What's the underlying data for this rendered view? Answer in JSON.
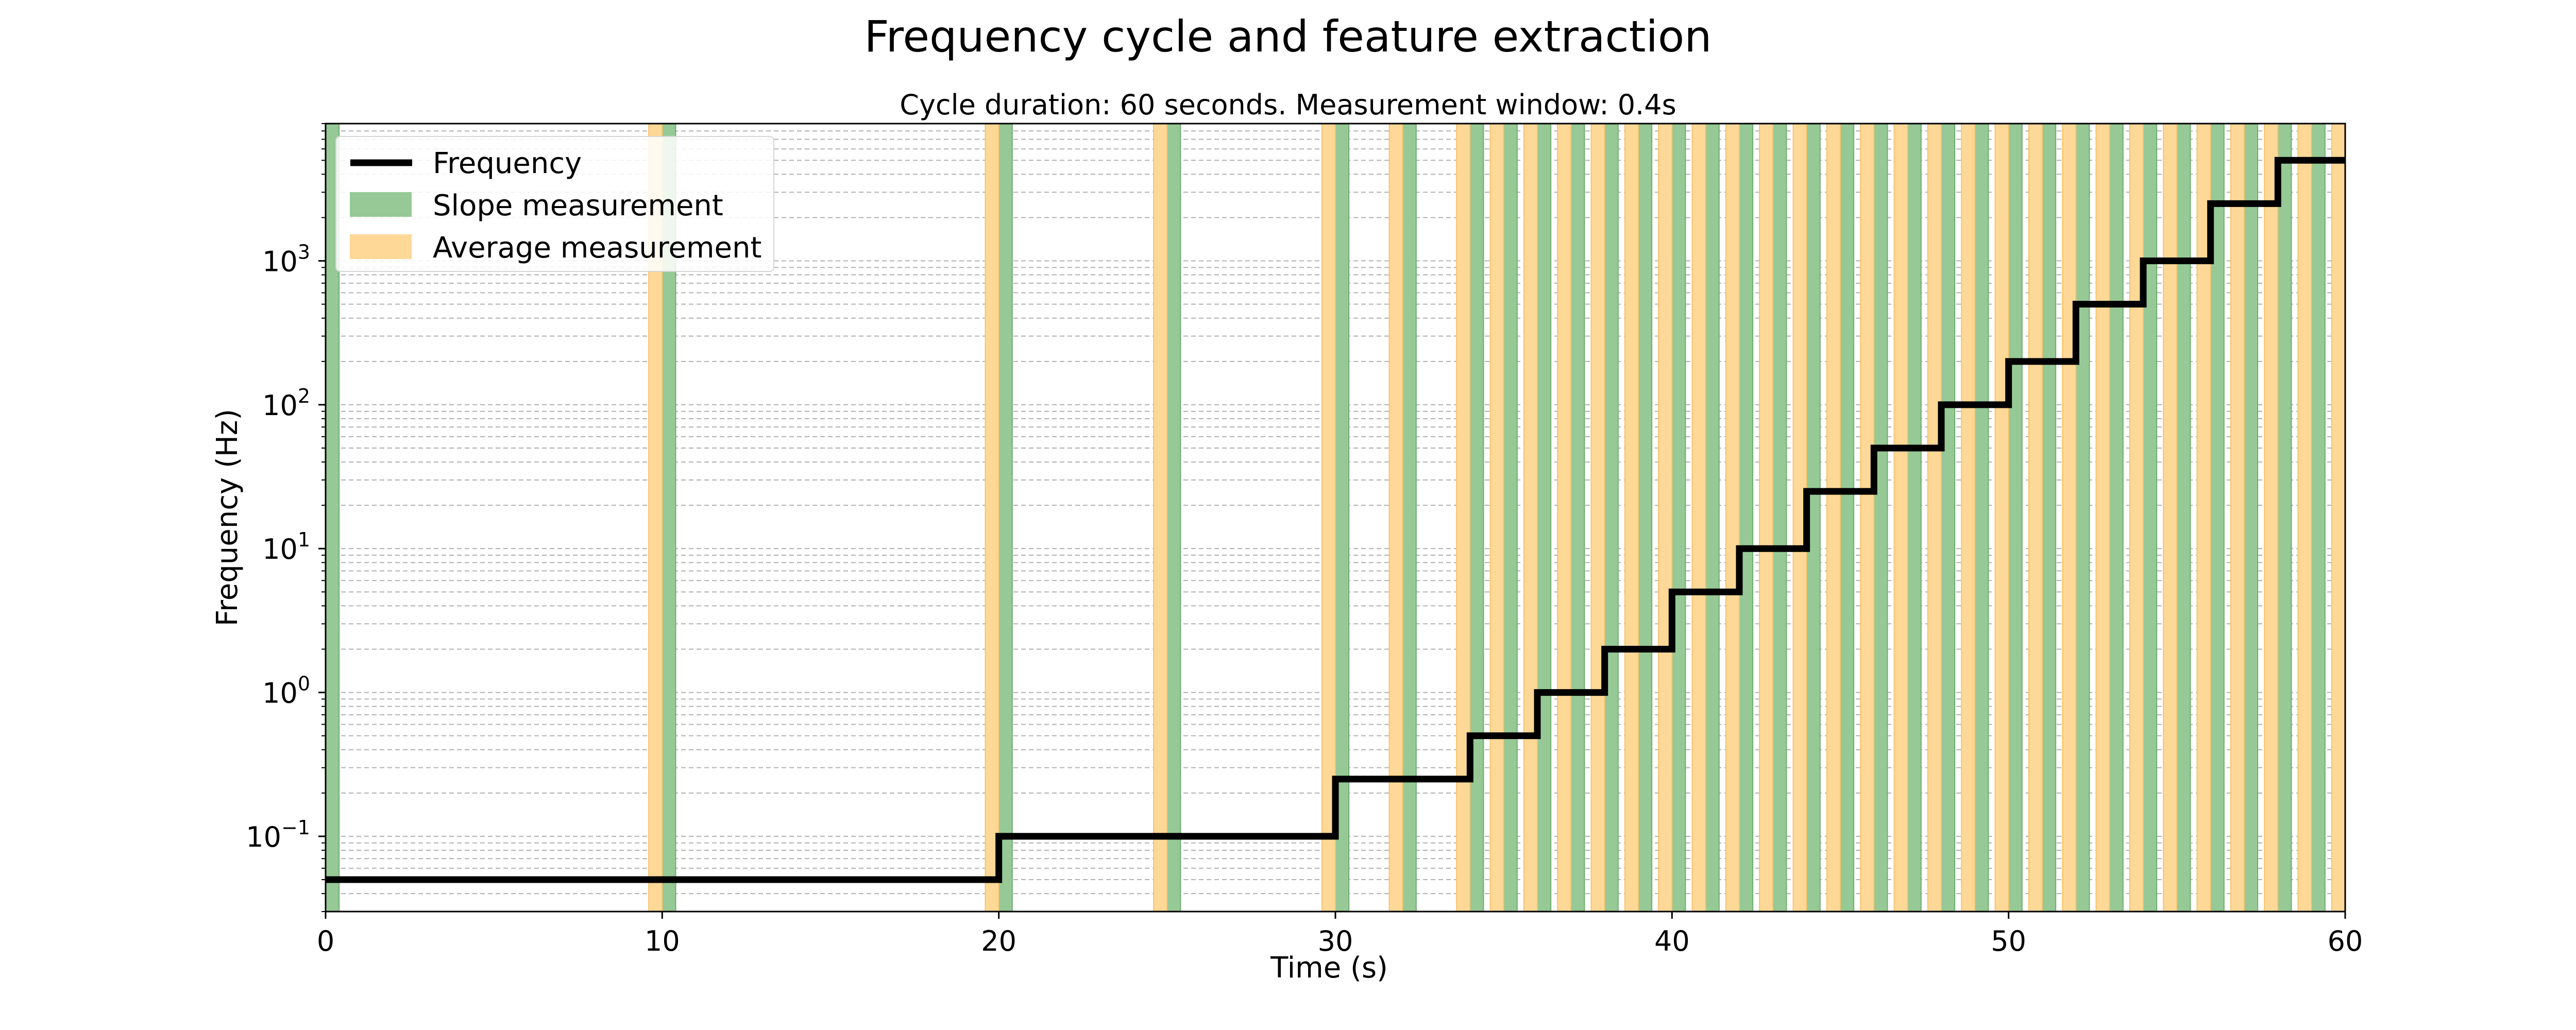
{
  "chart_data": {
    "type": "line",
    "title": "Frequency cycle and feature extraction",
    "subtitle": "Cycle duration: 60 seconds. Measurement window: 0.4s",
    "xlabel": "Time (s)",
    "ylabel": "Frequency (Hz)",
    "xlim": [
      0,
      60
    ],
    "ylim": [
      0.03,
      9000
    ],
    "yscale": "log",
    "grid": "y-major-and-minor-dashed",
    "legend_position": "upper-left",
    "x_ticks": [
      0,
      10,
      20,
      30,
      40,
      50,
      60
    ],
    "x_tick_labels": [
      "0",
      "10",
      "20",
      "30",
      "40",
      "50",
      "60"
    ],
    "y_ticks": [
      {
        "value": 0.1,
        "base": "10",
        "exp": "−1"
      },
      {
        "value": 1,
        "base": "10",
        "exp": "0"
      },
      {
        "value": 10,
        "base": "10",
        "exp": "1"
      },
      {
        "value": 100,
        "base": "10",
        "exp": "2"
      },
      {
        "value": 1000,
        "base": "10",
        "exp": "3"
      }
    ],
    "series": [
      {
        "name": "Frequency",
        "kind": "step",
        "color": "#000000",
        "x": [
          0,
          20,
          30,
          34,
          36,
          38,
          40,
          42,
          44,
          46,
          48,
          50,
          52,
          54,
          56,
          58,
          60
        ],
        "y": [
          0.05,
          0.1,
          0.25,
          0.5,
          1,
          2,
          5,
          10,
          25,
          50,
          100,
          200,
          500,
          1000,
          2500,
          5000,
          5000
        ]
      }
    ],
    "regions": [
      {
        "name": "Slope measurement",
        "color": "#96c996",
        "edge": "#6fae6f",
        "width": 0.4,
        "starts": [
          0,
          10,
          20,
          25,
          30,
          32,
          34,
          35,
          36,
          37,
          38,
          39,
          40,
          41,
          42,
          43,
          44,
          45,
          46,
          47,
          48,
          49,
          50,
          51,
          52,
          53,
          54,
          55,
          56,
          57,
          58,
          59
        ]
      },
      {
        "name": "Average measurement",
        "color": "#fdd897",
        "edge": "#f5c46e",
        "width": 0.4,
        "starts": [
          9.6,
          19.6,
          24.6,
          29.6,
          31.6,
          33.6,
          34.6,
          35.6,
          36.6,
          37.6,
          38.6,
          39.6,
          40.6,
          41.6,
          42.6,
          43.6,
          44.6,
          45.6,
          46.6,
          47.6,
          48.6,
          49.6,
          50.6,
          51.6,
          52.6,
          53.6,
          54.6,
          55.6,
          56.6,
          57.6,
          58.6,
          59.6
        ]
      }
    ],
    "legend": [
      {
        "label": "Frequency",
        "kind": "line",
        "color": "#000000"
      },
      {
        "label": "Slope measurement",
        "kind": "patch",
        "color": "#96c996"
      },
      {
        "label": "Average measurement",
        "kind": "patch",
        "color": "#fdd897"
      }
    ]
  }
}
